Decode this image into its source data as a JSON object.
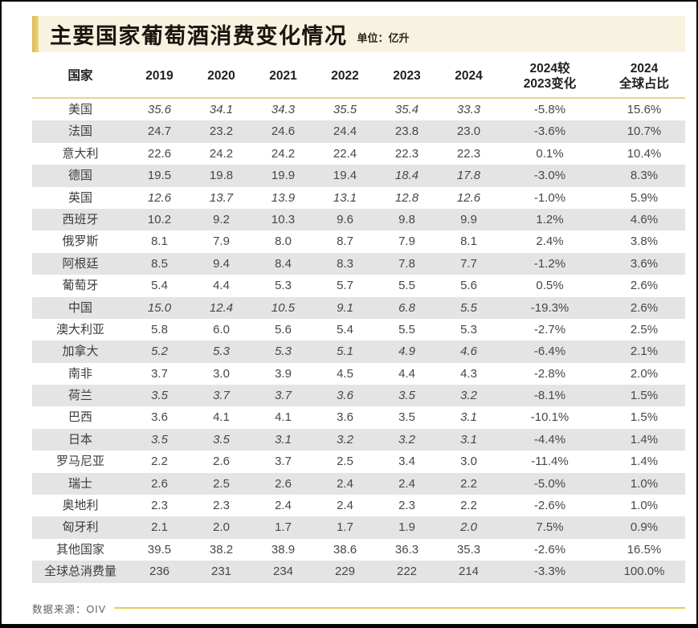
{
  "header": {
    "title": "主要国家葡萄酒消费变化情况",
    "unit": "单位：亿升"
  },
  "footer": {
    "source": "数据来源：OIV"
  },
  "colors": {
    "accent_gold": "#dcba50",
    "band_cream": "#f8f3e1",
    "stripe_gray": "#e4e4e4",
    "header_rule_yellow": "#e7d38c",
    "footer_line_yellow": "#e9cb55"
  },
  "chart_data": {
    "type": "table",
    "title": "主要国家葡萄酒消费变化情况",
    "unit": "亿升",
    "source": "OIV",
    "columns": [
      "国家",
      "2019",
      "2020",
      "2021",
      "2022",
      "2023",
      "2024",
      "2024较\n2023变化",
      "2024\n全球占比"
    ],
    "rows": [
      {
        "country": "美国",
        "values": [
          "35.6",
          "34.1",
          "34.3",
          "35.5",
          "35.4",
          "33.3"
        ],
        "italics": [
          true,
          true,
          true,
          true,
          true,
          true
        ],
        "change": "-5.8%",
        "share": "15.6%"
      },
      {
        "country": "法国",
        "values": [
          "24.7",
          "23.2",
          "24.6",
          "24.4",
          "23.8",
          "23.0"
        ],
        "italics": [
          false,
          false,
          false,
          false,
          false,
          false
        ],
        "change": "-3.6%",
        "share": "10.7%"
      },
      {
        "country": "意大利",
        "values": [
          "22.6",
          "24.2",
          "24.2",
          "22.4",
          "22.3",
          "22.3"
        ],
        "italics": [
          false,
          false,
          false,
          false,
          false,
          false
        ],
        "change": "0.1%",
        "share": "10.4%"
      },
      {
        "country": "德国",
        "values": [
          "19.5",
          "19.8",
          "19.9",
          "19.4",
          "18.4",
          "17.8"
        ],
        "italics": [
          false,
          false,
          false,
          false,
          true,
          true
        ],
        "change": "-3.0%",
        "share": "8.3%"
      },
      {
        "country": "英国",
        "values": [
          "12.6",
          "13.7",
          "13.9",
          "13.1",
          "12.8",
          "12.6"
        ],
        "italics": [
          true,
          true,
          true,
          true,
          true,
          true
        ],
        "change": "-1.0%",
        "share": "5.9%"
      },
      {
        "country": "西班牙",
        "values": [
          "10.2",
          "9.2",
          "10.3",
          "9.6",
          "9.8",
          "9.9"
        ],
        "italics": [
          false,
          false,
          false,
          false,
          false,
          false
        ],
        "change": "1.2%",
        "share": "4.6%"
      },
      {
        "country": "俄罗斯",
        "values": [
          "8.1",
          "7.9",
          "8.0",
          "8.7",
          "7.9",
          "8.1"
        ],
        "italics": [
          false,
          false,
          false,
          false,
          false,
          false
        ],
        "change": "2.4%",
        "share": "3.8%"
      },
      {
        "country": "阿根廷",
        "values": [
          "8.5",
          "9.4",
          "8.4",
          "8.3",
          "7.8",
          "7.7"
        ],
        "italics": [
          false,
          false,
          false,
          false,
          false,
          false
        ],
        "change": "-1.2%",
        "share": "3.6%"
      },
      {
        "country": "葡萄牙",
        "values": [
          "5.4",
          "4.4",
          "5.3",
          "5.7",
          "5.5",
          "5.6"
        ],
        "italics": [
          false,
          false,
          false,
          false,
          false,
          false
        ],
        "change": "0.5%",
        "share": "2.6%"
      },
      {
        "country": "中国",
        "values": [
          "15.0",
          "12.4",
          "10.5",
          "9.1",
          "6.8",
          "5.5"
        ],
        "italics": [
          true,
          true,
          true,
          true,
          true,
          true
        ],
        "change": "-19.3%",
        "share": "2.6%"
      },
      {
        "country": "澳大利亚",
        "values": [
          "5.8",
          "6.0",
          "5.6",
          "5.4",
          "5.5",
          "5.3"
        ],
        "italics": [
          false,
          false,
          false,
          false,
          false,
          false
        ],
        "change": "-2.7%",
        "share": "2.5%"
      },
      {
        "country": "加拿大",
        "values": [
          "5.2",
          "5.3",
          "5.3",
          "5.1",
          "4.9",
          "4.6"
        ],
        "italics": [
          true,
          true,
          true,
          true,
          true,
          true
        ],
        "change": "-6.4%",
        "share": "2.1%"
      },
      {
        "country": "南非",
        "values": [
          "3.7",
          "3.0",
          "3.9",
          "4.5",
          "4.4",
          "4.3"
        ],
        "italics": [
          false,
          false,
          false,
          false,
          false,
          false
        ],
        "change": "-2.8%",
        "share": "2.0%"
      },
      {
        "country": "荷兰",
        "values": [
          "3.5",
          "3.7",
          "3.7",
          "3.6",
          "3.5",
          "3.2"
        ],
        "italics": [
          true,
          true,
          true,
          true,
          true,
          true
        ],
        "change": "-8.1%",
        "share": "1.5%"
      },
      {
        "country": "巴西",
        "values": [
          "3.6",
          "4.1",
          "4.1",
          "3.6",
          "3.5",
          "3.1"
        ],
        "italics": [
          false,
          false,
          false,
          false,
          false,
          true
        ],
        "change": "-10.1%",
        "share": "1.5%"
      },
      {
        "country": "日本",
        "values": [
          "3.5",
          "3.5",
          "3.1",
          "3.2",
          "3.2",
          "3.1"
        ],
        "italics": [
          true,
          true,
          true,
          true,
          true,
          true
        ],
        "change": "-4.4%",
        "share": "1.4%"
      },
      {
        "country": "罗马尼亚",
        "values": [
          "2.2",
          "2.6",
          "3.7",
          "2.5",
          "3.4",
          "3.0"
        ],
        "italics": [
          false,
          false,
          false,
          false,
          false,
          false
        ],
        "change": "-11.4%",
        "share": "1.4%"
      },
      {
        "country": "瑞士",
        "values": [
          "2.6",
          "2.5",
          "2.6",
          "2.4",
          "2.4",
          "2.2"
        ],
        "italics": [
          false,
          false,
          false,
          false,
          false,
          false
        ],
        "change": "-5.0%",
        "share": "1.0%"
      },
      {
        "country": "奥地利",
        "values": [
          "2.3",
          "2.3",
          "2.4",
          "2.4",
          "2.3",
          "2.2"
        ],
        "italics": [
          false,
          false,
          false,
          false,
          false,
          false
        ],
        "change": "-2.6%",
        "share": "1.0%"
      },
      {
        "country": "匈牙利",
        "values": [
          "2.1",
          "2.0",
          "1.7",
          "1.7",
          "1.9",
          "2.0"
        ],
        "italics": [
          false,
          false,
          false,
          false,
          false,
          true
        ],
        "change": "7.5%",
        "share": "0.9%"
      },
      {
        "country": "其他国家",
        "values": [
          "39.5",
          "38.2",
          "38.9",
          "38.6",
          "36.3",
          "35.3"
        ],
        "italics": [
          false,
          false,
          false,
          false,
          false,
          false
        ],
        "change": "-2.6%",
        "share": "16.5%"
      },
      {
        "country": "全球总消费量",
        "values": [
          "236",
          "231",
          "234",
          "229",
          "222",
          "214"
        ],
        "italics": [
          false,
          false,
          false,
          false,
          false,
          false
        ],
        "change": "-3.3%",
        "share": "100.0%"
      }
    ]
  }
}
